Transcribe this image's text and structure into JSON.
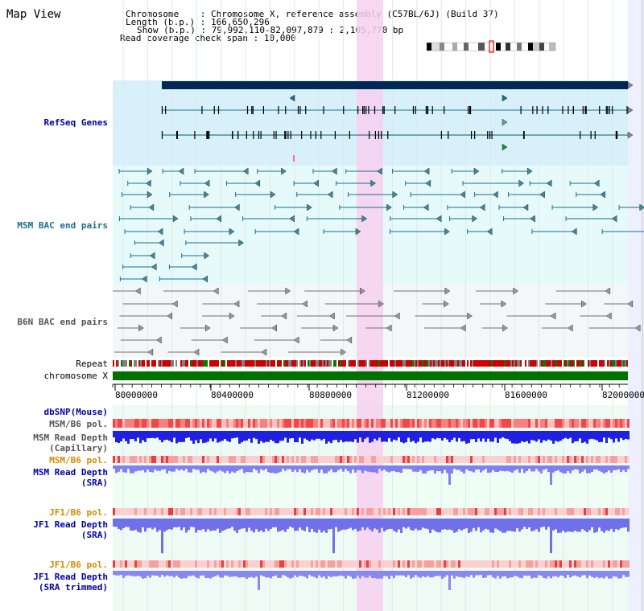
{
  "title": "Map View",
  "info": {
    "chromosome_key": "Chromosome",
    "chromosome_value": "Chromosome X, reference assembly (C57BL/6J) (Build 37)",
    "length_key": "Length (b.p.)",
    "length_value": "166,650,296",
    "show_key": "Show (b.p.)",
    "show_value": "79,992,110-82,097,879 : 2,105,770 bp",
    "span_key": "Read coverage check span",
    "span_value": "10,000"
  },
  "tracks": {
    "refseq": "RefSeq Genes",
    "msm_bac": "MSM BAC end pairs",
    "b6n_bac": "B6N BAC end pairs",
    "repeat": "Repeat",
    "chromosome": "chromosome X",
    "dbsnp": "dbSNP(Mouse)",
    "msm_b6_pol_1": "MSM/B6 pol.",
    "msm_depth_cap_1": "MSM Read Depth",
    "msm_depth_cap_2": "(Capillary)",
    "msm_b6_pol_2": "MSM/B6 pol.",
    "msm_depth_sra_1": "MSM Read Depth",
    "msm_depth_sra_2": "(SRA)",
    "jf1_b6_pol_1": "JF1/B6 pol.",
    "jf1_depth_sra_1": "JF1 Read Depth",
    "jf1_depth_sra_2": "(SRA)",
    "jf1_b6_pol_2": "JF1/B6 pol.",
    "jf1_depth_trim_1": "JF1 Read Depth",
    "jf1_depth_trim_2": "(SRA trimmed)"
  },
  "axis": {
    "ticks": [
      "80000000",
      "80400000",
      "80800000",
      "81200000",
      "81600000",
      "82000000"
    ]
  },
  "colors": {
    "refseq_bg": "#d8f0fa",
    "bac_bg": "#e6fafa",
    "b6n_bg": "#f4f7f8",
    "highlight": "#f7d0f0",
    "gene_bar": "#002855",
    "gene_line": "#1a6f8f",
    "bac_line": "#1a6f8f",
    "b6n_line": "#707070",
    "chromosome": "#007000",
    "depth_blue": "#2020e0",
    "depth_light": "#8080f0",
    "pol_red": "#f06060",
    "pol_light": "#f8b0b0"
  }
}
